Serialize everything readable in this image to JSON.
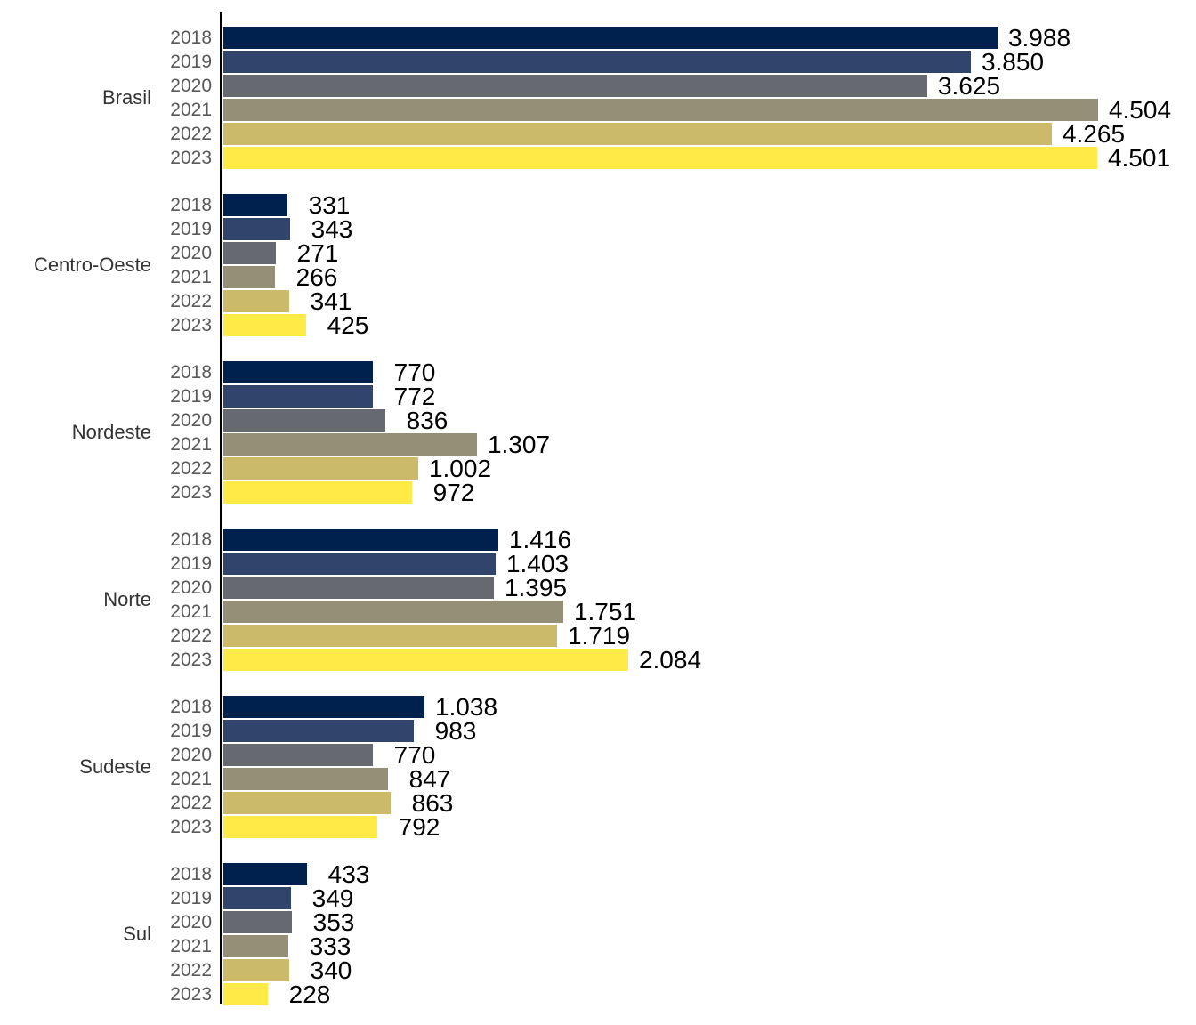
{
  "chart_data": {
    "type": "bar",
    "orientation": "horizontal",
    "title": "",
    "xlabel": "",
    "ylabel": "",
    "grid": false,
    "legend_position": "none",
    "xlim": [
      0,
      5010
    ],
    "value_format": "pt-BR thousands separator (dot)",
    "years": [
      "2018",
      "2019",
      "2020",
      "2021",
      "2022",
      "2023"
    ],
    "year_colors": {
      "2018": "#00204d",
      "2019": "#31446b",
      "2020": "#666970",
      "2021": "#958f78",
      "2022": "#cbba69",
      "2023": "#ffea46"
    },
    "series": [
      {
        "group": "Brasil",
        "values": [
          3988,
          3850,
          3625,
          4504,
          4265,
          4501
        ],
        "labels": [
          "3.988",
          "3.850",
          "3.625",
          "4.504",
          "4.265",
          "4.501"
        ]
      },
      {
        "group": "Centro-Oeste",
        "values": [
          331,
          343,
          271,
          266,
          341,
          425
        ],
        "labels": [
          "331",
          "343",
          "271",
          "266",
          "341",
          "425"
        ]
      },
      {
        "group": "Nordeste",
        "values": [
          770,
          772,
          836,
          1307,
          1002,
          972
        ],
        "labels": [
          "770",
          "772",
          "836",
          "1.307",
          "1.002",
          "972"
        ]
      },
      {
        "group": "Norte",
        "values": [
          1416,
          1403,
          1395,
          1751,
          1719,
          2084
        ],
        "labels": [
          "1.416",
          "1.403",
          "1.395",
          "1.751",
          "1.719",
          "2.084"
        ]
      },
      {
        "group": "Sudeste",
        "values": [
          1038,
          983,
          770,
          847,
          863,
          792
        ],
        "labels": [
          "1.038",
          "983",
          "770",
          "847",
          "863",
          "792"
        ]
      },
      {
        "group": "Sul",
        "values": [
          433,
          349,
          353,
          333,
          340,
          228
        ],
        "labels": [
          "433",
          "349",
          "353",
          "333",
          "340",
          "228"
        ]
      }
    ],
    "colors": {
      "axis": "#000000",
      "value_label": "#000000",
      "year_label": "#595959",
      "group_label": "#333333",
      "background": "#ffffff"
    }
  }
}
